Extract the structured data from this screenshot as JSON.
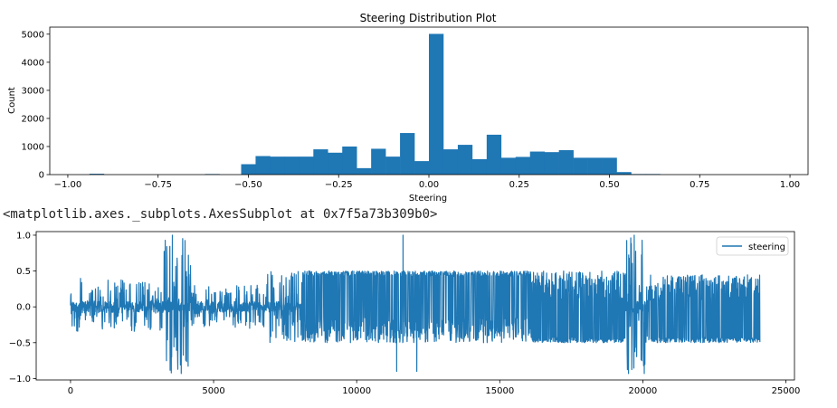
{
  "output_text": "<matplotlib.axes._subplots.AxesSubplot at 0x7f5a73b309b0>",
  "chart_data": [
    {
      "type": "bar",
      "title": "Steering Distribution Plot",
      "xlabel": "Steering",
      "ylabel": "Count",
      "xlim": [
        -1.05,
        1.05
      ],
      "ylim": [
        0,
        5250
      ],
      "xticks": [
        -1.0,
        -0.75,
        -0.5,
        -0.25,
        0.0,
        0.25,
        0.5,
        0.75,
        1.0
      ],
      "xtick_labels": [
        "−1.00",
        "−0.75",
        "−0.50",
        "−0.25",
        "0.00",
        "0.25",
        "0.50",
        "0.75",
        "1.00"
      ],
      "yticks": [
        0,
        1000,
        2000,
        3000,
        4000,
        5000
      ],
      "ytick_labels": [
        "0",
        "1000",
        "2000",
        "3000",
        "4000",
        "5000"
      ],
      "bin_width": 0.04,
      "bin_starts": [
        -0.94,
        -0.62,
        -0.52,
        -0.48,
        -0.44,
        -0.4,
        -0.36,
        -0.32,
        -0.28,
        -0.24,
        -0.2,
        -0.16,
        -0.12,
        -0.08,
        -0.04,
        0.0,
        0.04,
        0.08,
        0.12,
        0.16,
        0.2,
        0.24,
        0.28,
        0.32,
        0.36,
        0.4,
        0.44,
        0.48,
        0.52,
        0.56,
        0.6
      ],
      "values": [
        30,
        20,
        370,
        660,
        640,
        640,
        640,
        900,
        780,
        1000,
        230,
        920,
        640,
        1480,
        480,
        5010,
        900,
        1060,
        550,
        1420,
        600,
        630,
        820,
        800,
        870,
        600,
        600,
        600,
        90,
        20,
        20
      ],
      "color": "#1f77b4"
    },
    {
      "type": "line",
      "xlim": [
        -1200,
        25300
      ],
      "ylim": [
        -1.02,
        1.05
      ],
      "xticks": [
        0,
        5000,
        10000,
        15000,
        20000,
        25000
      ],
      "xtick_labels": [
        "0",
        "5000",
        "10000",
        "15000",
        "20000",
        "25000"
      ],
      "yticks": [
        -1.0,
        -0.5,
        0.0,
        0.5,
        1.0
      ],
      "ytick_labels": [
        "−1.0",
        "−0.5",
        "0.0",
        "0.5",
        "1.0"
      ],
      "legend": "upper right",
      "series": [
        {
          "name": "steering",
          "color": "#1f77b4",
          "x_range": [
            0,
            24100
          ],
          "segments": [
            {
              "x": [
                0,
                3200
              ],
              "min": -0.35,
              "max": 0.4
            },
            {
              "x": [
                3200,
                4200
              ],
              "min": -0.9,
              "max": 1.0
            },
            {
              "x": [
                4200,
                6800
              ],
              "min": -0.3,
              "max": 0.3
            },
            {
              "x": [
                6800,
                8100
              ],
              "min": -0.5,
              "max": 0.5
            },
            {
              "x": [
                8100,
                16100
              ],
              "min": -0.5,
              "max": 0.5
            },
            {
              "x": [
                16100,
                19400
              ],
              "min": -0.5,
              "max": 0.5
            },
            {
              "x": [
                19400,
                20200
              ],
              "min": -0.95,
              "max": 1.0
            },
            {
              "x": [
                20200,
                24100
              ],
              "min": -0.5,
              "max": 0.45
            }
          ],
          "spikes": [
            {
              "x": 3560,
              "y": 1.0
            },
            {
              "x": 3520,
              "y": -0.92
            },
            {
              "x": 3870,
              "y": -0.93
            },
            {
              "x": 11620,
              "y": 1.0
            },
            {
              "x": 11400,
              "y": -0.9
            },
            {
              "x": 12100,
              "y": -0.9
            },
            {
              "x": 19500,
              "y": -0.93
            },
            {
              "x": 19700,
              "y": 1.0
            },
            {
              "x": 20050,
              "y": -0.93
            }
          ]
        }
      ]
    }
  ]
}
